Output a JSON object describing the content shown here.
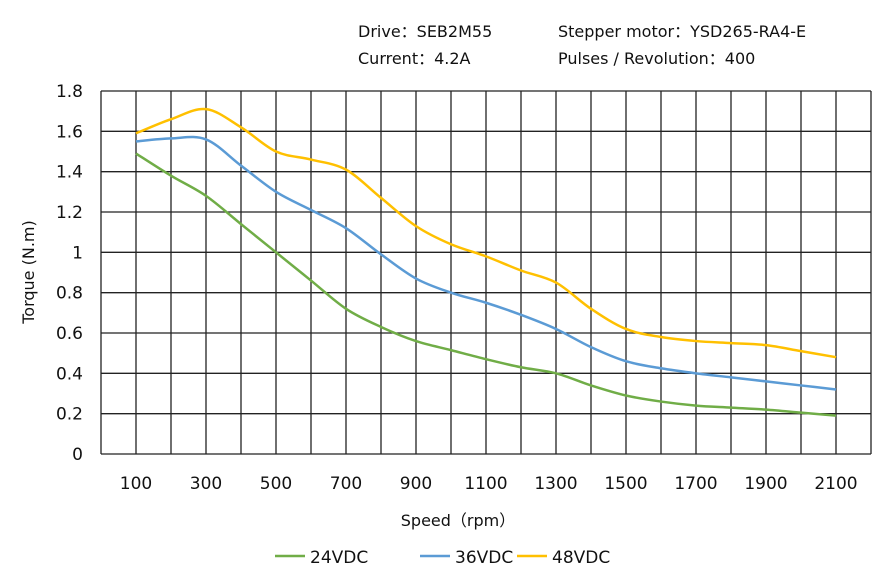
{
  "header": {
    "drive": "Drive：SEB2M55",
    "motor": "Stepper motor：YSD265-RA4-E",
    "current": "Current：4.2A",
    "pulses": "Pulses / Revolution：400"
  },
  "chart_data": {
    "type": "line",
    "title": "",
    "xlabel": "Speed（rpm）",
    "ylabel": "Torque (N.m)",
    "xlim": [
      0,
      2200
    ],
    "ylim": [
      0,
      1.8
    ],
    "grid": true,
    "legend_position": "bottom",
    "xticks": [
      100,
      300,
      500,
      700,
      900,
      1100,
      1300,
      1500,
      1700,
      1900,
      2100
    ],
    "yticks": [
      0,
      0.2,
      0.4,
      0.6,
      0.8,
      1,
      1.2,
      1.4,
      1.6,
      1.8
    ],
    "ytick_labels": [
      "0",
      "0.2",
      "0.4",
      "0.6",
      "0.8",
      "1",
      "1.2",
      "1.4",
      "1.6",
      "1.8"
    ],
    "x": [
      100,
      200,
      300,
      400,
      500,
      600,
      700,
      800,
      900,
      1000,
      1100,
      1200,
      1300,
      1400,
      1500,
      1600,
      1700,
      1800,
      1900,
      2000,
      2100
    ],
    "series": [
      {
        "name": "24VDC",
        "color": "#70AD47",
        "values": [
          1.49,
          1.38,
          1.28,
          1.14,
          1.0,
          0.86,
          0.72,
          0.63,
          0.56,
          0.515,
          0.47,
          0.43,
          0.4,
          0.34,
          0.29,
          0.26,
          0.24,
          0.23,
          0.22,
          0.205,
          0.19
        ]
      },
      {
        "name": "36VDC",
        "color": "#5B9BD5",
        "values": [
          1.55,
          1.565,
          1.56,
          1.43,
          1.3,
          1.21,
          1.12,
          0.99,
          0.87,
          0.8,
          0.75,
          0.69,
          0.62,
          0.53,
          0.46,
          0.425,
          0.4,
          0.38,
          0.36,
          0.34,
          0.32
        ]
      },
      {
        "name": "48VDC",
        "color": "#FFC000",
        "values": [
          1.59,
          1.66,
          1.71,
          1.62,
          1.5,
          1.46,
          1.41,
          1.27,
          1.13,
          1.04,
          0.98,
          0.91,
          0.85,
          0.72,
          0.62,
          0.58,
          0.56,
          0.55,
          0.54,
          0.51,
          0.48
        ]
      }
    ]
  }
}
